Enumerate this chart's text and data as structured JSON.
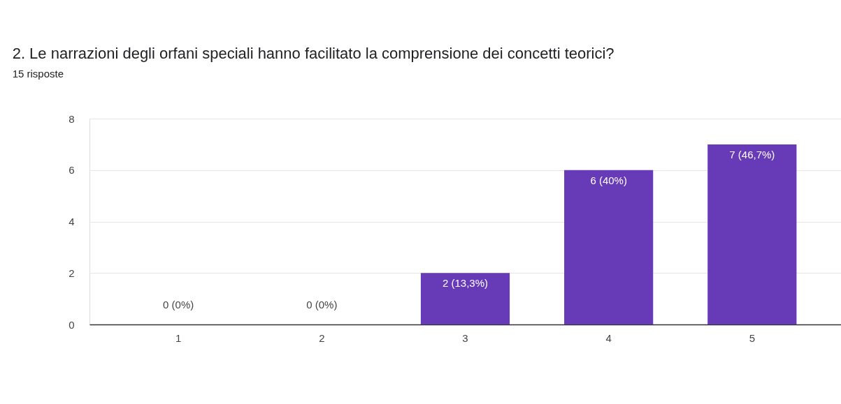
{
  "chart_data": {
    "type": "bar",
    "title": "2. Le narrazioni degli orfani speciali hanno facilitato la comprensione dei concetti teorici?",
    "subtitle": "15 risposte",
    "categories": [
      "1",
      "2",
      "3",
      "4",
      "5"
    ],
    "series": [
      {
        "color": "#673ab7",
        "values": [
          0,
          0,
          2,
          6,
          7
        ],
        "value_labels": [
          "0 (0%)",
          "0 (0%)",
          "2 (13,3%)",
          "6 (40%)",
          "7 (46,7%)"
        ]
      }
    ],
    "ylim": [
      0,
      8
    ],
    "yticks": [
      0,
      2,
      4,
      6,
      8
    ],
    "grid": "y"
  }
}
